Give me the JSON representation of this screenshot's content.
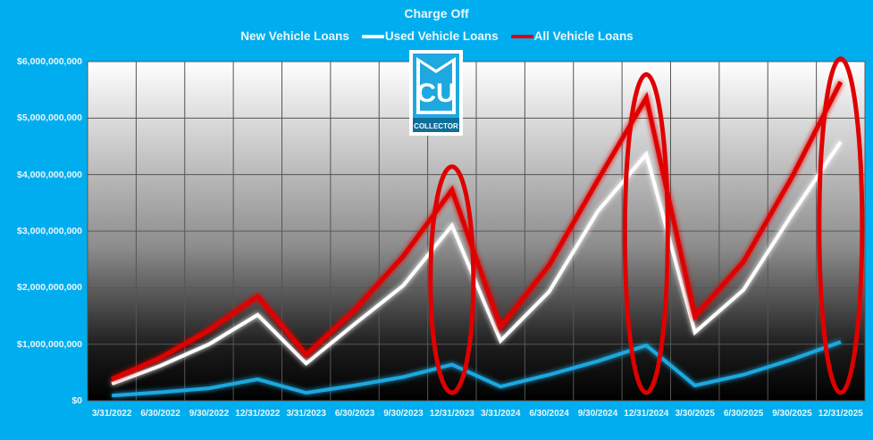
{
  "chart_data": {
    "type": "line",
    "title": "Charge Off",
    "xlabel": "",
    "ylabel": "",
    "ylim": [
      0,
      6000000000
    ],
    "grid": true,
    "legend_position": "top",
    "categories": [
      "3/31/2022",
      "6/30/2022",
      "9/30/2022",
      "12/31/2022",
      "3/31/2023",
      "6/30/2023",
      "9/30/2023",
      "12/31/2023",
      "3/31/2024",
      "6/30/2024",
      "9/30/2024",
      "12/31/2024",
      "3/30/2025",
      "6/30/2025",
      "9/30/2025",
      "12/31/2025"
    ],
    "series": [
      {
        "name": "New Vehicle Loans",
        "color": "#1ea8e0",
        "values": [
          90000000,
          150000000,
          220000000,
          380000000,
          140000000,
          270000000,
          420000000,
          640000000,
          250000000,
          460000000,
          700000000,
          980000000,
          270000000,
          460000000,
          730000000,
          1040000000
        ]
      },
      {
        "name": "Used Vehicle Loans",
        "color": "#ffffff",
        "values": [
          300000000,
          620000000,
          1000000000,
          1520000000,
          660000000,
          1360000000,
          2040000000,
          3100000000,
          1060000000,
          1930000000,
          3350000000,
          4360000000,
          1210000000,
          1960000000,
          3300000000,
          4580000000
        ]
      },
      {
        "name": "All Vehicle Loans",
        "color": "#e00000",
        "values": [
          380000000,
          760000000,
          1250000000,
          1850000000,
          810000000,
          1610000000,
          2560000000,
          3730000000,
          1300000000,
          2400000000,
          3900000000,
          5360000000,
          1490000000,
          2460000000,
          3960000000,
          5640000000
        ]
      }
    ],
    "y_ticks": [
      "$0",
      "$1,000,000,000",
      "$2,000,000,000",
      "$3,000,000,000",
      "$4,000,000,000",
      "$5,000,000,000",
      "$6,000,000,000"
    ],
    "annotations": [
      {
        "type": "ellipse",
        "target": "12/31/2023",
        "color": "#e00000"
      },
      {
        "type": "ellipse",
        "target": "12/31/2024",
        "color": "#e00000"
      },
      {
        "type": "ellipse",
        "target": "12/31/2025",
        "color": "#e00000"
      }
    ]
  },
  "logo": {
    "monogram": "CU",
    "text": "COLLECTOR"
  },
  "colors": {
    "background": "#00aeef",
    "text": "#eaf6fb",
    "annotation": "#e00000"
  }
}
